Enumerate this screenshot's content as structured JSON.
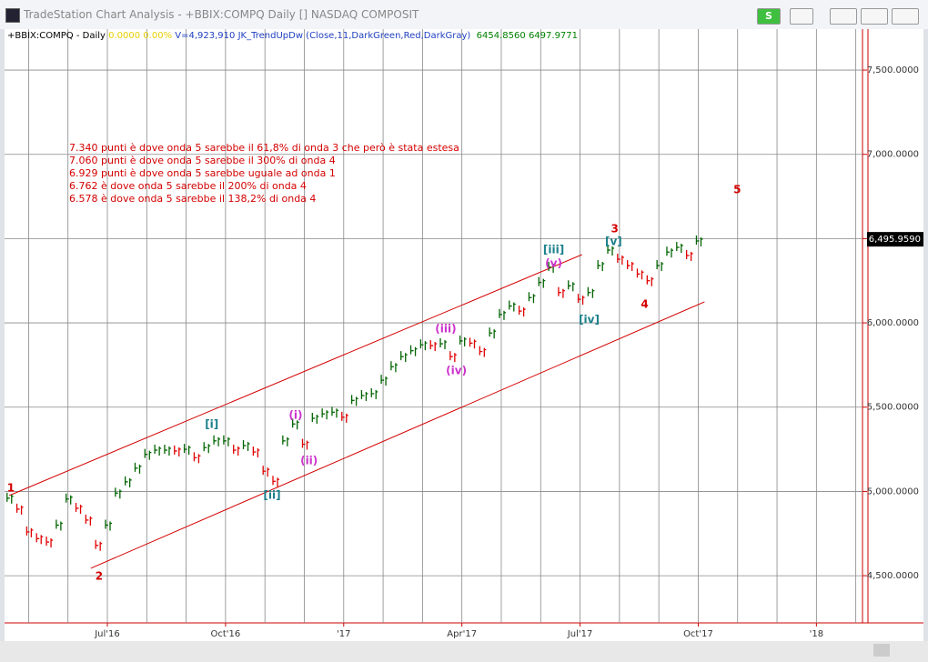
{
  "window": {
    "title": "TradeStation Chart Analysis - +BBIX:COMPQ Daily [] NASDAQ COMPOSIT",
    "status_button": "S"
  },
  "header": {
    "symbol": "+BBIX:COMPQ - Daily",
    "change": "0.0000",
    "change_pct": "0.00%",
    "volume": "V=4,923,910",
    "indicator": "JK_TrendUpDw (Close,11,DarkGreen,Red,DarkGray)",
    "value1": "6454.8560",
    "value2": "6497.9771"
  },
  "notes": [
    "7.340 punti è dove onda 5 sarebbe il 61,8% di onda 3 che però è stata estesa",
    "7.060 punti è dove onda 5 sarebbe il 300% di onda 4",
    "6.929 punti è dove onda 5 sarebbe uguale ad onda 1",
    "6.762 è dove onda 5 sarebbe il 200% di onda 4",
    "6.578  è dove onda 5 sarebbe il 138,2% di onda 4"
  ],
  "chart_data": {
    "type": "price_bars",
    "up_color": "#006400",
    "down_color": "#e00000",
    "x": [
      3.5,
      3.75,
      4,
      4.25,
      4.5,
      4.75,
      5,
      5.25,
      5.5,
      5.75,
      6,
      6.25,
      6.5,
      6.75,
      7,
      7.25,
      7.5,
      7.75,
      8,
      8.25,
      8.5,
      8.75,
      9,
      9.25,
      9.5,
      9.75,
      10,
      10.25,
      10.5,
      10.75,
      11,
      11.25,
      11.5,
      11.75,
      12,
      12.25,
      12.5,
      12.75,
      13,
      13.25,
      13.5,
      13.75,
      14,
      14.25,
      14.5,
      14.75,
      15,
      15.25,
      15.5,
      15.75,
      16,
      16.25,
      16.5,
      16.75,
      17,
      17.25,
      17.5,
      17.75,
      18,
      18.25,
      18.5,
      18.75,
      19,
      19.25,
      19.5,
      19.75,
      20,
      20.25,
      20.5,
      20.75,
      21
    ],
    "values": [
      4960,
      4895,
      4760,
      4720,
      4700,
      4800,
      4955,
      4900,
      4830,
      4680,
      4800,
      4990,
      5057,
      5138,
      5220,
      5245,
      5245,
      5240,
      5250,
      5200,
      5260,
      5300,
      5300,
      5245,
      5272,
      5234,
      5120,
      5060,
      5300,
      5400,
      5280,
      5434,
      5460,
      5470,
      5440,
      5540,
      5569,
      5580,
      5660,
      5740,
      5800,
      5835,
      5870,
      5865,
      5876,
      5800,
      5893,
      5880,
      5830,
      5940,
      6050,
      6100,
      6070,
      6150,
      6240,
      6330,
      6180,
      6220,
      6140,
      6180,
      6340,
      6432,
      6378,
      6340,
      6290,
      6250,
      6340,
      6420,
      6448,
      6400,
      6486
    ],
    "xlim": [
      3.39,
      25.17
    ],
    "ylim": [
      4220,
      7743
    ],
    "xticks": [
      {
        "value": 6,
        "label": "Jul'16"
      },
      {
        "value": 9,
        "label": "Oct'16"
      },
      {
        "value": 12,
        "label": "'17"
      },
      {
        "value": 15,
        "label": "Apr'17"
      },
      {
        "value": 18,
        "label": "Jul'17"
      },
      {
        "value": 21,
        "label": "Oct'17"
      },
      {
        "value": 24,
        "label": "'18"
      }
    ],
    "x_gridlines": [
      4,
      5,
      6,
      7,
      8,
      9,
      10,
      11,
      12,
      13,
      14,
      15,
      16,
      17,
      18,
      19,
      20,
      21,
      22,
      23,
      24,
      25
    ],
    "yticks": [
      {
        "value": 4500,
        "label": "4,500.0000"
      },
      {
        "value": 5000,
        "label": "5,000.0000"
      },
      {
        "value": 5500,
        "label": "5,500.0000"
      },
      {
        "value": 6000,
        "label": "6,000.0000"
      },
      {
        "value": 6500,
        "label": "6,500.0000"
      },
      {
        "value": 7000,
        "label": "7,000.0000"
      },
      {
        "value": 7500,
        "label": "7,500.0000"
      }
    ],
    "grid": true,
    "last_price": {
      "value": 6495.959,
      "label": "6,495.9590"
    },
    "trendlines": [
      {
        "color": "#d40000",
        "x": [
          3.51,
          18.05
        ],
        "y": [
          4976,
          6405
        ]
      },
      {
        "color": "#d40000",
        "x": [
          5.58,
          21.16
        ],
        "y": [
          4544,
          6125
        ]
      }
    ],
    "annotations": [
      {
        "text": "1",
        "x": 3.55,
        "y": 5019,
        "color": "#d40000"
      },
      {
        "text": "2",
        "x": 5.79,
        "y": 4496,
        "color": "#d40000"
      },
      {
        "text": "[i]",
        "x": 8.65,
        "y": 5396,
        "color": "#1a7f8a"
      },
      {
        "text": "[ii]",
        "x": 10.18,
        "y": 4976,
        "color": "#1a7f8a"
      },
      {
        "text": "(i)",
        "x": 10.78,
        "y": 5450,
        "color": "#cc33cc"
      },
      {
        "text": "(ii)",
        "x": 11.12,
        "y": 5180,
        "color": "#cc33cc"
      },
      {
        "text": "(iii)",
        "x": 14.59,
        "y": 5963,
        "color": "#cc33cc"
      },
      {
        "text": "(iv)",
        "x": 14.86,
        "y": 5715,
        "color": "#cc33cc"
      },
      {
        "text": "[iii]",
        "x": 17.33,
        "y": 6432,
        "color": "#1a7f8a"
      },
      {
        "text": "(v)",
        "x": 17.33,
        "y": 6351,
        "color": "#cc33cc"
      },
      {
        "text": "[iv]",
        "x": 18.23,
        "y": 6017,
        "color": "#1a7f8a"
      },
      {
        "text": "3",
        "x": 18.88,
        "y": 6556,
        "color": "#d40000"
      },
      {
        "text": "[v]",
        "x": 18.85,
        "y": 6481,
        "color": "#1a7f8a"
      },
      {
        "text": "4",
        "x": 19.64,
        "y": 6108,
        "color": "#d40000"
      },
      {
        "text": "5",
        "x": 21.99,
        "y": 6788,
        "color": "#d40000"
      }
    ]
  }
}
